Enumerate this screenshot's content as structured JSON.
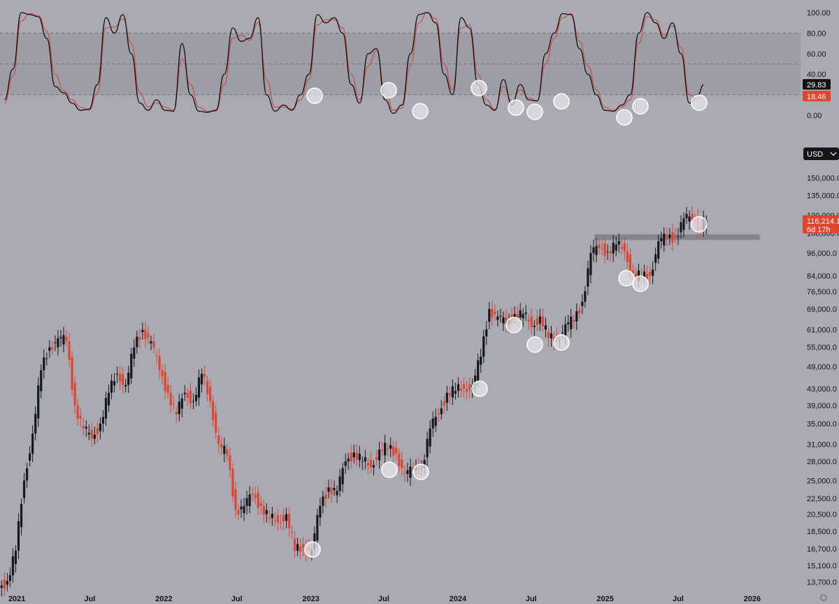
{
  "chart_data": [
    {
      "type": "line",
      "subtype": "stochastic-oscillator",
      "ylim": [
        0,
        100
      ],
      "yticks": [
        "100.00",
        "80.00",
        "60.00",
        "40.00",
        "0.00"
      ],
      "band": [
        20,
        80
      ],
      "midline": 50,
      "grid": false,
      "colors": {
        "k": "#111111",
        "d": "#d24b3c",
        "band": "#9a9ba3"
      },
      "x": [
        "2020-12-01",
        "2020-12-22",
        "2021-01-12",
        "2021-02-02",
        "2021-02-23",
        "2021-03-16",
        "2021-04-06",
        "2021-04-27",
        "2021-05-18",
        "2021-06-08",
        "2021-06-29",
        "2021-07-20",
        "2021-08-10",
        "2021-08-31",
        "2021-09-21",
        "2021-10-12",
        "2021-11-02",
        "2021-11-23",
        "2021-12-14",
        "2022-01-04",
        "2022-01-25",
        "2022-02-15",
        "2022-03-08",
        "2022-03-29",
        "2022-04-19",
        "2022-05-10",
        "2022-05-31",
        "2022-06-21",
        "2022-07-12",
        "2022-08-02",
        "2022-08-23",
        "2022-09-13",
        "2022-10-04",
        "2022-10-25",
        "2022-11-15",
        "2022-12-06",
        "2022-12-27",
        "2023-01-17",
        "2023-02-07",
        "2023-02-28",
        "2023-03-21",
        "2023-04-11",
        "2023-05-02",
        "2023-05-23",
        "2023-06-13",
        "2023-07-04",
        "2023-07-25",
        "2023-08-15",
        "2023-09-05",
        "2023-09-26",
        "2023-10-17",
        "2023-11-07",
        "2023-11-28",
        "2023-12-19",
        "2024-01-09",
        "2024-01-30",
        "2024-02-20",
        "2024-03-12",
        "2024-04-02",
        "2024-04-23",
        "2024-05-14",
        "2024-06-04",
        "2024-06-25",
        "2024-07-16",
        "2024-08-06",
        "2024-08-27",
        "2024-09-17",
        "2024-10-08",
        "2024-10-29",
        "2024-11-19",
        "2024-12-10",
        "2024-12-31",
        "2025-01-21",
        "2025-02-11",
        "2025-03-04",
        "2025-03-25",
        "2025-04-15",
        "2025-05-06",
        "2025-05-27",
        "2025-06-17",
        "2025-07-08",
        "2025-07-29",
        "2025-08-19",
        "2025-09-02"
      ],
      "series": [
        {
          "name": "",
          "values": [
            15,
            45,
            100,
            98,
            96,
            75,
            28,
            22,
            12,
            5,
            6,
            30,
            95,
            80,
            98,
            60,
            12,
            5,
            15,
            5,
            4,
            70,
            20,
            4,
            3,
            5,
            40,
            85,
            72,
            75,
            95,
            20,
            4,
            10,
            5,
            20,
            40,
            98,
            90,
            95,
            80,
            30,
            12,
            60,
            65,
            15,
            2,
            10,
            60,
            98,
            100,
            90,
            40,
            20,
            95,
            85,
            30,
            10,
            5,
            35,
            10,
            30,
            15,
            14,
            60,
            80,
            99,
            98,
            65,
            40,
            20,
            5,
            4,
            10,
            20,
            80,
            100,
            90,
            75,
            90,
            60,
            12,
            20,
            29.83
          ]
        },
        {
          "name": "",
          "values": [
            12,
            38,
            92,
            99,
            97,
            82,
            40,
            24,
            15,
            8,
            5,
            22,
            85,
            86,
            94,
            70,
            22,
            8,
            12,
            8,
            5,
            55,
            30,
            8,
            4,
            4,
            30,
            75,
            78,
            73,
            90,
            35,
            8,
            8,
            6,
            15,
            35,
            88,
            93,
            93,
            85,
            40,
            15,
            48,
            63,
            25,
            5,
            7,
            48,
            90,
            100,
            94,
            50,
            25,
            85,
            88,
            40,
            15,
            6,
            28,
            14,
            25,
            17,
            14,
            50,
            75,
            95,
            99,
            72,
            48,
            25,
            8,
            5,
            8,
            15,
            70,
            96,
            93,
            78,
            87,
            66,
            20,
            16,
            18.46
          ]
        }
      ],
      "last_values": {
        "k": "29.83",
        "d": "18.46"
      },
      "annotations": [
        "circles on oversold touches"
      ]
    },
    {
      "type": "candlestick",
      "currency": "USD",
      "scale": "log",
      "xticks": [
        "2021",
        "Jul",
        "2022",
        "Jul",
        "2023",
        "Jul",
        "2024",
        "Jul",
        "2025",
        "Jul",
        "2026"
      ],
      "yticks": [
        "150,000.0",
        "135,000.0",
        "120,000.0",
        "108,000.0",
        "96,000.0",
        "84,000.0",
        "76,500.0",
        "69,000.0",
        "61,000.0",
        "55,000.0",
        "49,000.0",
        "43,000.0",
        "39,000.0",
        "35,000.0",
        "31,000.0",
        "28,000.0",
        "25,000.0",
        "22,500.0",
        "20,500.0",
        "18,500.0",
        "16,700.0",
        "15,100.0",
        "13,700.0"
      ],
      "ylim": [
        12700,
        175000
      ],
      "xlim": [
        "2020-11-20",
        "2026-05-01"
      ],
      "grid": false,
      "colors": {
        "up": "#17181d",
        "down": "#e0452f",
        "price_tag": "#e0452f",
        "support": "#7f8088"
      },
      "price_tag": {
        "price": "116,214.1",
        "countdown": "6d 17h"
      },
      "support_zone": {
        "value": 105500,
        "from": "2024-12-05",
        "to": "2026-01-20"
      },
      "dates": [
        "2020-12-01",
        "2020-12-22",
        "2021-01-12",
        "2021-02-02",
        "2021-02-23",
        "2021-03-16",
        "2021-04-06",
        "2021-04-27",
        "2021-05-18",
        "2021-06-08",
        "2021-06-29",
        "2021-07-20",
        "2021-08-10",
        "2021-08-31",
        "2021-09-21",
        "2021-10-12",
        "2021-11-02",
        "2021-11-23",
        "2021-12-14",
        "2022-01-04",
        "2022-01-25",
        "2022-02-15",
        "2022-03-08",
        "2022-03-29",
        "2022-04-19",
        "2022-05-10",
        "2022-05-31",
        "2022-06-21",
        "2022-07-12",
        "2022-08-02",
        "2022-08-23",
        "2022-09-13",
        "2022-10-04",
        "2022-10-25",
        "2022-11-15",
        "2022-12-06",
        "2022-12-27",
        "2023-01-17",
        "2023-02-07",
        "2023-02-28",
        "2023-03-21",
        "2023-04-11",
        "2023-05-02",
        "2023-05-23",
        "2023-06-13",
        "2023-07-04",
        "2023-07-25",
        "2023-08-15",
        "2023-09-05",
        "2023-09-26",
        "2023-10-17",
        "2023-11-07",
        "2023-11-28",
        "2023-12-19",
        "2024-01-09",
        "2024-01-30",
        "2024-02-20",
        "2024-03-12",
        "2024-04-02",
        "2024-04-23",
        "2024-05-14",
        "2024-06-04",
        "2024-06-25",
        "2024-07-16",
        "2024-08-06",
        "2024-08-27",
        "2024-09-17",
        "2024-10-08",
        "2024-10-29",
        "2024-11-19",
        "2024-12-10",
        "2024-12-31",
        "2025-01-21",
        "2025-02-11",
        "2025-03-04",
        "2025-03-25",
        "2025-04-15",
        "2025-05-06",
        "2025-05-27",
        "2025-06-17",
        "2025-07-08",
        "2025-07-29",
        "2025-08-19",
        "2025-09-02"
      ],
      "close": [
        13800,
        16500,
        25000,
        33000,
        48000,
        55000,
        58000,
        57000,
        39000,
        34000,
        32000,
        35000,
        42000,
        47000,
        44000,
        55000,
        61000,
        57000,
        48000,
        42000,
        37000,
        42000,
        40000,
        47000,
        40000,
        31000,
        29000,
        21000,
        21500,
        23000,
        21500,
        20000,
        19500,
        20500,
        16500,
        16800,
        16600,
        21500,
        24000,
        23500,
        28000,
        29500,
        28000,
        27000,
        30000,
        30200,
        29300,
        26000,
        26500,
        27000,
        34000,
        37000,
        42000,
        42500,
        43000,
        44000,
        52000,
        69000,
        66000,
        63000,
        67000,
        67000,
        62000,
        66000,
        58000,
        57000,
        63000,
        64000,
        72000,
        96000,
        99000,
        97000,
        101000,
        97000,
        85000,
        83000,
        84000,
        103000,
        105000,
        106000,
        118000,
        117000,
        112000,
        116214
      ],
      "annotations": [
        "circles on pullback lows"
      ]
    }
  ]
}
